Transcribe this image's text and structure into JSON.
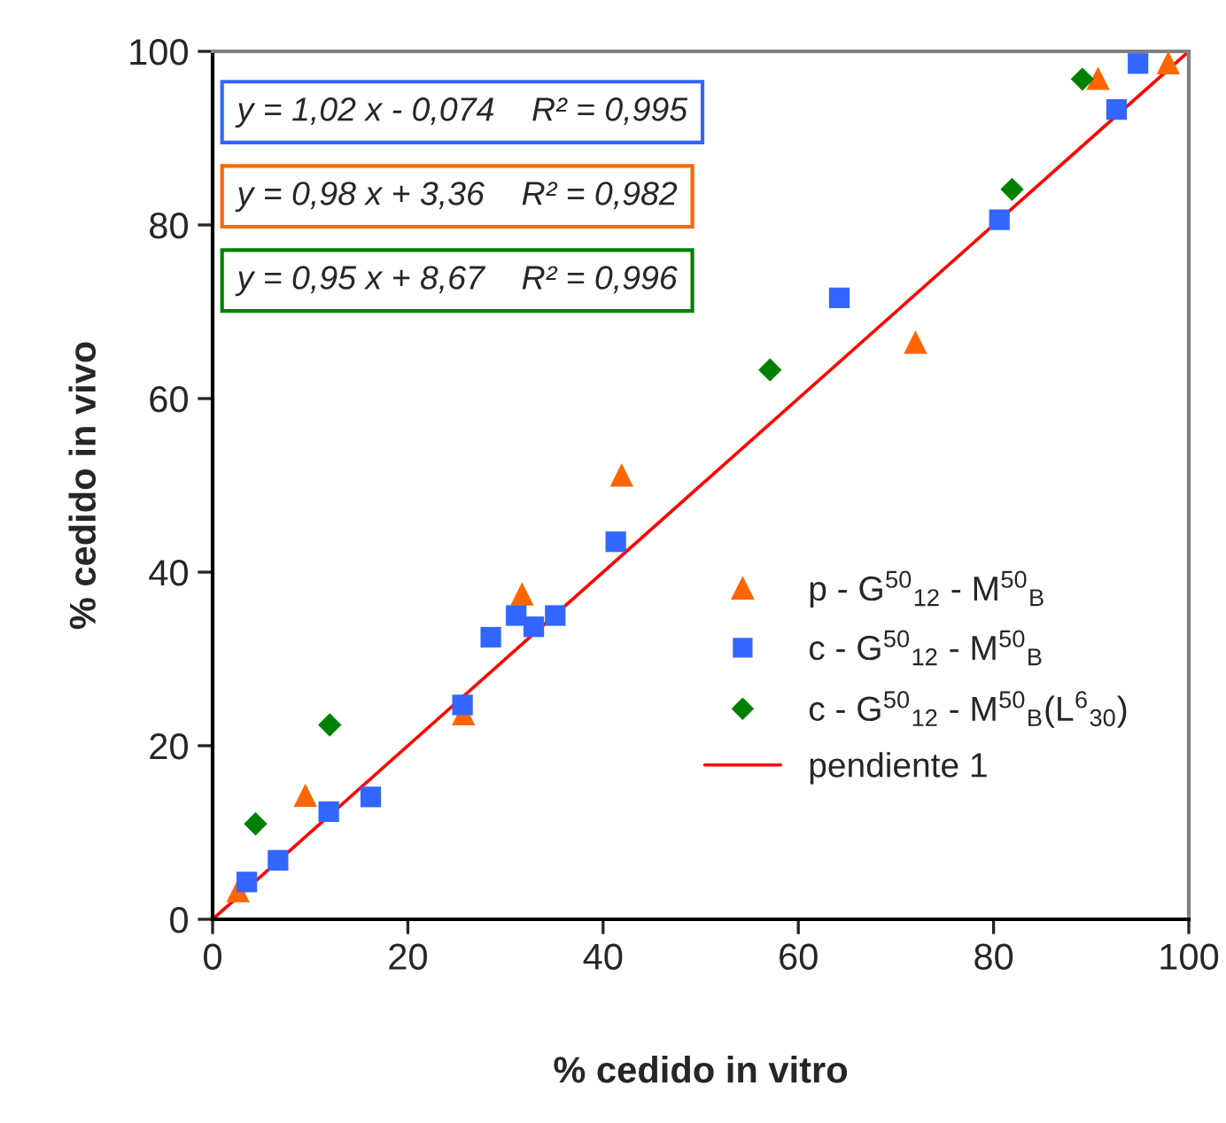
{
  "chart_data": {
    "type": "scatter",
    "xlabel": "% cedido in vitro",
    "ylabel": "% cedido in vivo",
    "xlim": [
      0,
      100
    ],
    "ylim": [
      0,
      100
    ],
    "xticks": [
      0,
      20,
      40,
      60,
      80,
      100
    ],
    "yticks": [
      0,
      20,
      40,
      60,
      80,
      100
    ],
    "grid": false,
    "legend": "lower right",
    "annotations": [
      "y = 1,02 x - 0,074    R² = 0,995",
      "y = 0,98 x + 3,36    R² = 0,982",
      "y = 0,95 x + 8,67    R² = 0,996"
    ],
    "series": [
      {
        "name": "p - G$^{50}$$_{12}$ - M$^{50}$$_{B}$",
        "color": "#ff6600",
        "marker": "triangle",
        "x": [
          2.6,
          9.5,
          25.7,
          31.7,
          41.9,
          72.0,
          90.7,
          97.9
        ],
        "values": [
          3.3,
          14.3,
          23.7,
          37.5,
          51.2,
          66.5,
          96.9,
          98.7
        ]
      },
      {
        "name": "c - G$^{50}$$_{12}$ - M$^{50}$$_{B}$",
        "color": "#3366ff",
        "marker": "square",
        "x": [
          3.5,
          6.7,
          11.9,
          16.2,
          25.6,
          28.5,
          31.1,
          32.9,
          35.1,
          41.3,
          64.2,
          80.6,
          92.6,
          94.8
        ],
        "values": [
          4.3,
          6.8,
          12.4,
          14.1,
          24.7,
          32.5,
          35.0,
          33.7,
          35.0,
          43.5,
          71.6,
          80.6,
          93.3,
          98.6
        ]
      },
      {
        "name": "c - G$^{50}$$_{12}$ - M$^{50}$$_{B}$(L$^{6}$$_{30}$)",
        "color": "#008000",
        "marker": "diamond",
        "x": [
          4.4,
          12.0,
          57.1,
          81.9,
          89.1
        ],
        "values": [
          11.0,
          22.4,
          63.3,
          84.1,
          96.8
        ]
      },
      {
        "name": "pendiente 1",
        "color": "#ff0000",
        "type": "line",
        "marker": "none",
        "line_style": "solid",
        "x": [
          0,
          100
        ],
        "values": [
          0,
          100
        ]
      }
    ]
  }
}
